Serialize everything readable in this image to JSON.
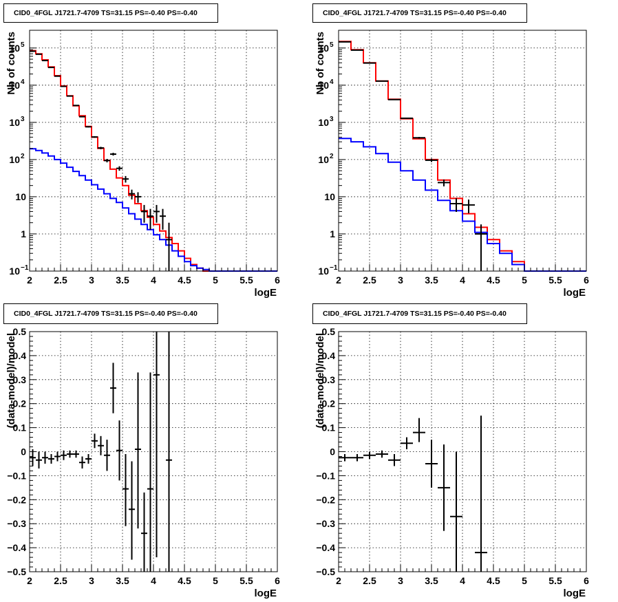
{
  "chart_data": [
    {
      "panel": "top-left",
      "type": "line",
      "title": "CID0_4FGL J1721.7-4709 TS=31.15 PS=-0.40 PS=-0.40",
      "xlabel": "logE",
      "ylabel": "Nb of counts",
      "xlim": [
        2,
        6
      ],
      "ylim": [
        0.1,
        300000
      ],
      "yscale": "log",
      "grid": true,
      "xticks": [
        "2",
        "2.5",
        "3",
        "3.5",
        "4",
        "4.5",
        "5",
        "5.5",
        "6"
      ],
      "yticks": [
        {
          "v": 0.1,
          "label": "10",
          "exp": "−1"
        },
        {
          "v": 1,
          "label": "1"
        },
        {
          "v": 10,
          "label": "10"
        },
        {
          "v": 100,
          "label": "10",
          "exp": "2"
        },
        {
          "v": 1000,
          "label": "10",
          "exp": "3"
        },
        {
          "v": 10000,
          "label": "10",
          "exp": "4"
        },
        {
          "v": 100000,
          "label": "10",
          "exp": "5"
        }
      ],
      "series": [
        {
          "kind": "step",
          "color": "#ff0000",
          "edges": [
            2.0,
            2.1,
            2.2,
            2.3,
            2.4,
            2.5,
            2.6,
            2.7,
            2.8,
            2.9,
            3.0,
            3.1,
            3.2,
            3.3,
            3.4,
            3.5,
            3.6,
            3.7,
            3.8,
            3.9,
            4.0,
            4.1,
            4.2,
            4.3,
            4.4,
            4.5,
            4.6,
            4.7,
            4.8,
            4.9,
            5.0,
            6.0
          ],
          "values": [
            85000,
            70000,
            48000,
            31000,
            18000,
            9500,
            5200,
            2800,
            1500,
            780,
            400,
            200,
            95,
            55,
            32,
            20,
            11,
            6.5,
            4.2,
            2.8,
            1.8,
            1.2,
            0.8,
            0.55,
            0.35,
            0.22,
            0.15,
            0.12,
            0.1,
            0.1,
            0.1
          ]
        },
        {
          "kind": "step",
          "color": "#0000ff",
          "edges": [
            2.0,
            2.1,
            2.2,
            2.3,
            2.4,
            2.5,
            2.6,
            2.7,
            2.8,
            2.9,
            3.0,
            3.1,
            3.2,
            3.3,
            3.4,
            3.5,
            3.6,
            3.7,
            3.8,
            3.9,
            4.0,
            4.1,
            4.2,
            4.3,
            4.4,
            4.5,
            4.6,
            4.7,
            4.8,
            4.9,
            5.0,
            6.0
          ],
          "values": [
            195,
            175,
            150,
            125,
            100,
            80,
            62,
            48,
            37,
            28,
            21,
            16,
            12,
            9,
            7,
            5,
            3.5,
            2.5,
            1.8,
            1.3,
            0.95,
            0.7,
            0.5,
            0.35,
            0.25,
            0.18,
            0.14,
            0.12,
            0.11,
            0.1,
            0.1
          ]
        },
        {
          "kind": "points",
          "color": "#000000",
          "x": [
            2.05,
            2.15,
            2.25,
            2.35,
            2.45,
            2.55,
            2.65,
            2.75,
            2.85,
            2.95,
            3.05,
            3.15,
            3.25,
            3.35,
            3.45,
            3.55,
            3.65,
            3.75,
            3.85,
            3.95,
            4.05,
            4.15,
            4.25
          ],
          "xerr": 0.05,
          "y": [
            82000,
            68000,
            46000,
            30000,
            17500,
            9300,
            5100,
            2850,
            1420,
            760,
            405,
            205,
            94,
            140,
            58,
            30,
            12,
            10,
            4,
            3,
            4,
            3,
            0.7
          ],
          "ylo": [
            81700,
            67700,
            45800,
            29800,
            17400,
            9200,
            5030,
            2800,
            1380,
            730,
            385,
            190,
            84,
            128,
            50,
            24,
            8.5,
            6.9,
            2,
            1.3,
            2,
            1.3,
            0.1
          ],
          "yhi": [
            82300,
            68300,
            46200,
            30200,
            17600,
            9400,
            5170,
            2900,
            1460,
            790,
            425,
            220,
            104,
            152,
            66,
            36,
            15.5,
            13.2,
            6,
            4.7,
            6,
            4.7,
            2
          ]
        }
      ]
    },
    {
      "panel": "top-right",
      "type": "line",
      "title": "CID0_4FGL J1721.7-4709 TS=31.15 PS=-0.40 PS=-0.40",
      "xlabel": "logE",
      "ylabel": "Nb of counts",
      "xlim": [
        2,
        6
      ],
      "ylim": [
        0.1,
        300000
      ],
      "yscale": "log",
      "grid": true,
      "xticks": [
        "2",
        "2.5",
        "3",
        "3.5",
        "4",
        "4.5",
        "5",
        "5.5",
        "6"
      ],
      "yticks": [
        {
          "v": 0.1,
          "label": "10",
          "exp": "−1"
        },
        {
          "v": 1,
          "label": "1"
        },
        {
          "v": 10,
          "label": "10"
        },
        {
          "v": 100,
          "label": "10",
          "exp": "2"
        },
        {
          "v": 1000,
          "label": "10",
          "exp": "3"
        },
        {
          "v": 10000,
          "label": "10",
          "exp": "4"
        },
        {
          "v": 100000,
          "label": "10",
          "exp": "5"
        }
      ],
      "series": [
        {
          "kind": "step",
          "color": "#ff0000",
          "edges": [
            2.0,
            2.2,
            2.4,
            2.6,
            2.8,
            3.0,
            3.2,
            3.4,
            3.6,
            3.8,
            4.0,
            4.2,
            4.4,
            4.6,
            4.8,
            5.0,
            6.0
          ],
          "values": [
            150000,
            90000,
            40000,
            13000,
            4200,
            1250,
            360,
            100,
            28,
            9,
            3.5,
            1.5,
            0.7,
            0.35,
            0.18,
            0.1
          ]
        },
        {
          "kind": "step",
          "color": "#0000ff",
          "edges": [
            2.0,
            2.2,
            2.4,
            2.6,
            2.8,
            3.0,
            3.2,
            3.4,
            3.6,
            3.8,
            4.0,
            4.2,
            4.4,
            4.6,
            4.8,
            5.0,
            6.0
          ],
          "values": [
            370,
            300,
            220,
            145,
            85,
            50,
            28,
            15,
            8,
            4.2,
            2.2,
            1.1,
            0.55,
            0.3,
            0.15,
            0.1
          ]
        },
        {
          "kind": "points",
          "color": "#000000",
          "x": [
            2.1,
            2.3,
            2.5,
            2.7,
            2.9,
            3.1,
            3.3,
            3.5,
            3.7,
            3.9,
            4.1,
            4.3
          ],
          "xerr": 0.1,
          "y": [
            146000,
            87500,
            39400,
            12900,
            4100,
            1290,
            385,
            96,
            24,
            6.5,
            6,
            1
          ],
          "ylo": [
            145600,
            87200,
            39200,
            12780,
            4030,
            1250,
            364,
            86,
            19,
            3.9,
            3.6,
            0.1
          ],
          "yhi": [
            146400,
            87800,
            39600,
            13020,
            4170,
            1330,
            406,
            106,
            29,
            9.1,
            8.4,
            1.8
          ]
        }
      ]
    },
    {
      "panel": "bottom-left",
      "type": "scatter",
      "title": "CID0_4FGL J1721.7-4709 TS=31.15 PS=-0.40 PS=-0.40",
      "xlabel": "logE",
      "ylabel": "(data-model)/model",
      "xlim": [
        2,
        6
      ],
      "ylim": [
        -0.5,
        0.5
      ],
      "yscale": "linear",
      "grid": true,
      "xticks": [
        "2",
        "2.5",
        "3",
        "3.5",
        "4",
        "4.5",
        "5",
        "5.5",
        "6"
      ],
      "yticks": [
        {
          "v": -0.5,
          "label": "−0.5"
        },
        {
          "v": -0.4,
          "label": "−0.4"
        },
        {
          "v": -0.3,
          "label": "−0.3"
        },
        {
          "v": -0.2,
          "label": "−0.2"
        },
        {
          "v": -0.1,
          "label": "−0.1"
        },
        {
          "v": 0,
          "label": "0"
        },
        {
          "v": 0.1,
          "label": "0.1"
        },
        {
          "v": 0.2,
          "label": "0.2"
        },
        {
          "v": 0.3,
          "label": "0.3"
        },
        {
          "v": 0.4,
          "label": "0.4"
        },
        {
          "v": 0.5,
          "label": "0.5"
        }
      ],
      "series": [
        {
          "kind": "points",
          "color": "#000000",
          "x": [
            2.05,
            2.15,
            2.25,
            2.35,
            2.45,
            2.55,
            2.65,
            2.75,
            2.85,
            2.95,
            3.05,
            3.15,
            3.25,
            3.35,
            3.45,
            3.55,
            3.65,
            3.75,
            3.85,
            3.95,
            4.05,
            4.25
          ],
          "xerr": 0.05,
          "y": [
            -0.025,
            -0.035,
            -0.025,
            -0.03,
            -0.02,
            -0.015,
            -0.01,
            -0.01,
            -0.045,
            -0.03,
            0.045,
            0.025,
            -0.015,
            0.265,
            0.005,
            -0.155,
            -0.24,
            0.01,
            -0.34,
            -0.155,
            0.32,
            -0.035
          ],
          "ylo": [
            -0.06,
            -0.07,
            -0.05,
            -0.05,
            -0.04,
            -0.035,
            -0.025,
            -0.025,
            -0.07,
            -0.05,
            0.015,
            -0.015,
            -0.08,
            0.16,
            -0.12,
            -0.31,
            -0.45,
            -0.32,
            -0.5,
            -0.5,
            -0.44,
            -0.5
          ],
          "yhi": [
            0.01,
            0.0,
            0.0,
            -0.01,
            0.0,
            0.005,
            0.005,
            0.005,
            -0.02,
            -0.01,
            0.075,
            0.065,
            0.05,
            0.37,
            0.13,
            -0.01,
            -0.04,
            0.33,
            -0.17,
            0.33,
            0.5,
            0.5
          ]
        }
      ]
    },
    {
      "panel": "bottom-right",
      "type": "scatter",
      "title": "CID0_4FGL J1721.7-4709 TS=31.15 PS=-0.40 PS=-0.40",
      "xlabel": "logE",
      "ylabel": "(data-model)/model",
      "xlim": [
        2,
        6
      ],
      "ylim": [
        -0.5,
        0.5
      ],
      "yscale": "linear",
      "grid": true,
      "xticks": [
        "2",
        "2.5",
        "3",
        "3.5",
        "4",
        "4.5",
        "5",
        "5.5",
        "6"
      ],
      "yticks": [
        {
          "v": -0.5,
          "label": "−0.5"
        },
        {
          "v": -0.4,
          "label": "−0.4"
        },
        {
          "v": -0.3,
          "label": "−0.3"
        },
        {
          "v": -0.2,
          "label": "−0.2"
        },
        {
          "v": -0.1,
          "label": "−0.1"
        },
        {
          "v": 0,
          "label": "0"
        },
        {
          "v": 0.1,
          "label": "0.1"
        },
        {
          "v": 0.2,
          "label": "0.2"
        },
        {
          "v": 0.3,
          "label": "0.3"
        },
        {
          "v": 0.4,
          "label": "0.4"
        },
        {
          "v": 0.5,
          "label": "0.5"
        }
      ],
      "series": [
        {
          "kind": "points",
          "color": "#000000",
          "x": [
            2.1,
            2.3,
            2.5,
            2.7,
            2.9,
            3.1,
            3.3,
            3.5,
            3.7,
            3.9,
            4.3
          ],
          "xerr": 0.1,
          "y": [
            -0.025,
            -0.025,
            -0.015,
            -0.01,
            -0.035,
            0.035,
            0.08,
            -0.05,
            -0.15,
            -0.27,
            -0.42
          ],
          "ylo": [
            -0.04,
            -0.04,
            -0.03,
            -0.025,
            -0.06,
            0.01,
            0.04,
            -0.15,
            -0.33,
            -0.5,
            -0.5
          ],
          "yhi": [
            -0.01,
            -0.01,
            0.0,
            0.005,
            -0.01,
            0.06,
            0.14,
            0.05,
            0.03,
            0.0,
            0.15
          ]
        }
      ]
    }
  ]
}
